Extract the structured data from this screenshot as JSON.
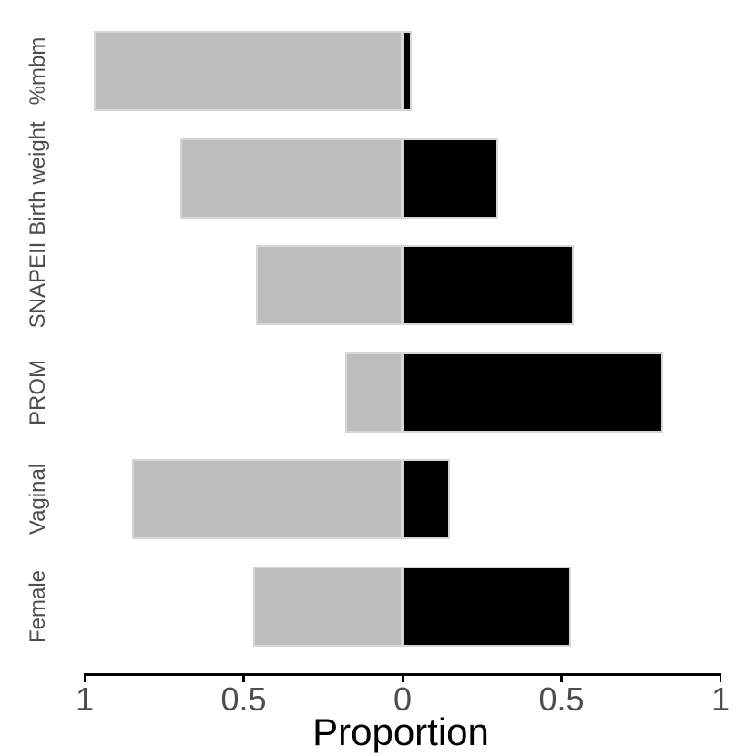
{
  "chart_data": {
    "type": "bar",
    "subtype": "diverging-horizontal-stacked",
    "title": "",
    "xlabel": "Proportion",
    "ylabel": "",
    "categories": [
      "%mbm",
      "Birth weight",
      "SNAPEII",
      "PROM",
      "Vaginal",
      "Female"
    ],
    "series": [
      {
        "name": "left-gray",
        "direction": "left",
        "color": "#bebebe",
        "values": [
          0.97,
          0.7,
          0.46,
          0.18,
          0.85,
          0.47
        ]
      },
      {
        "name": "right-black",
        "direction": "right",
        "color": "#000000",
        "values": [
          0.03,
          0.3,
          0.54,
          0.82,
          0.15,
          0.53
        ]
      }
    ],
    "x_ticks": [
      {
        "label": "1",
        "value": -1.0
      },
      {
        "label": "0.5",
        "value": -0.5
      },
      {
        "label": "0",
        "value": 0.0
      },
      {
        "label": "0.5",
        "value": 0.5
      },
      {
        "label": "1",
        "value": 1.0
      }
    ],
    "xlim": [
      -1,
      1
    ],
    "grid": false,
    "legend": false
  },
  "colors": {
    "bar_gray": "#bebebe",
    "bar_black": "#000000",
    "segment_border": "#d6d6d6",
    "axis_line": "#000000",
    "tick_mark": "#000000",
    "axis_text": "#4d4d4d",
    "axis_title": "#000000",
    "background": "#ffffff"
  }
}
